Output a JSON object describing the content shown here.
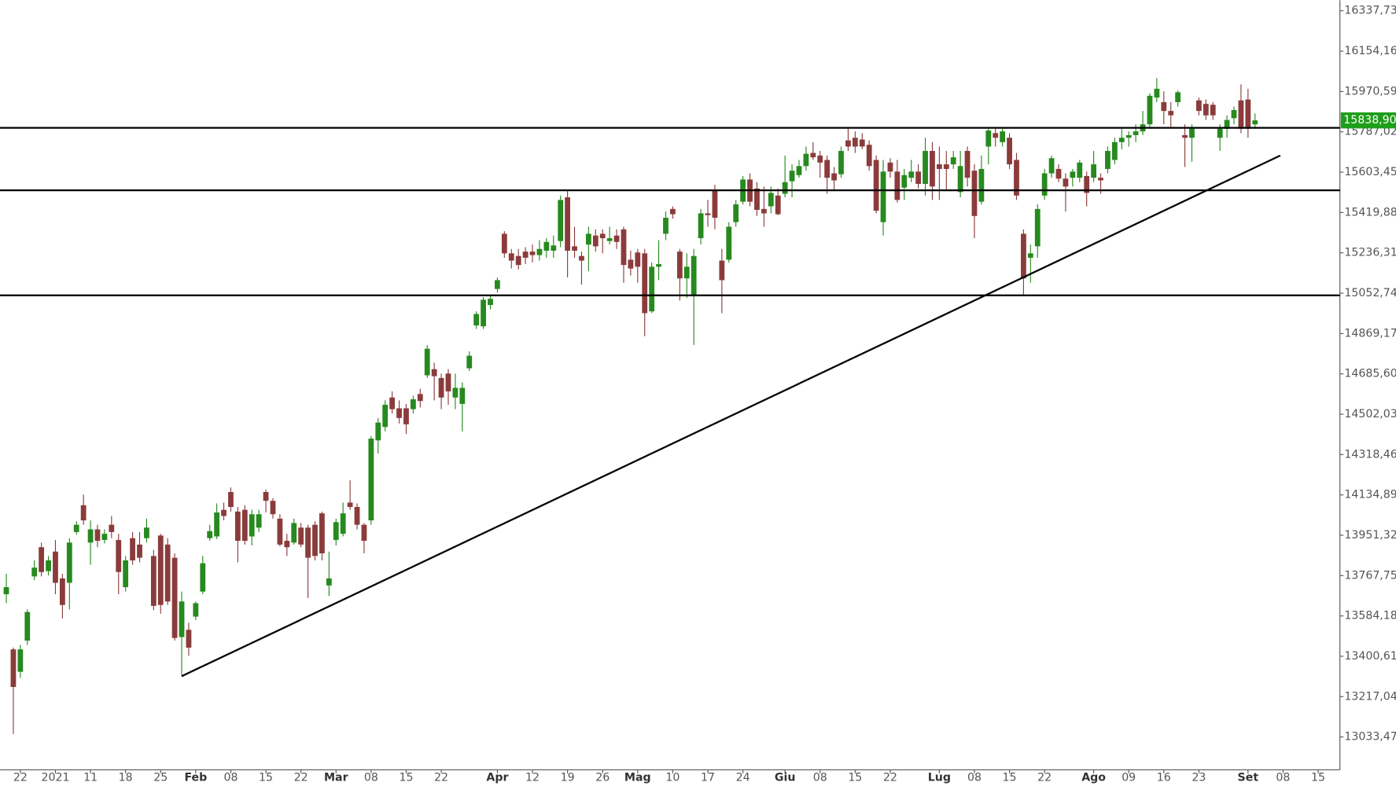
{
  "chart_data": {
    "type": "candlestick",
    "up_color": "#268a1e",
    "down_color": "#8b3b3b",
    "line_color": "#000000",
    "last_price_color": "#1e9e1a",
    "xlim": [
      -0.9,
      190.1
    ],
    "ylim": [
      12884,
      16386
    ],
    "xticks": [
      {
        "value": 2,
        "label": "22"
      },
      {
        "value": 7,
        "label": "2021"
      },
      {
        "value": 12,
        "label": "11"
      },
      {
        "value": 17,
        "label": "18"
      },
      {
        "value": 22,
        "label": "25"
      },
      {
        "value": 27,
        "label": "Feb"
      },
      {
        "value": 32,
        "label": "08"
      },
      {
        "value": 37,
        "label": "15"
      },
      {
        "value": 42,
        "label": "22"
      },
      {
        "value": 47,
        "label": "Mar"
      },
      {
        "value": 52,
        "label": "08"
      },
      {
        "value": 57,
        "label": "15"
      },
      {
        "value": 62,
        "label": "22"
      },
      {
        "value": 70,
        "label": "Apr"
      },
      {
        "value": 75,
        "label": "12"
      },
      {
        "value": 80,
        "label": "19"
      },
      {
        "value": 85,
        "label": "26"
      },
      {
        "value": 90,
        "label": "Mag"
      },
      {
        "value": 95,
        "label": "10"
      },
      {
        "value": 100,
        "label": "17"
      },
      {
        "value": 105,
        "label": "24"
      },
      {
        "value": 111,
        "label": "Giu"
      },
      {
        "value": 116,
        "label": "08"
      },
      {
        "value": 121,
        "label": "15"
      },
      {
        "value": 126,
        "label": "22"
      },
      {
        "value": 133,
        "label": "Lug"
      },
      {
        "value": 138,
        "label": "08"
      },
      {
        "value": 143,
        "label": "15"
      },
      {
        "value": 148,
        "label": "22"
      },
      {
        "value": 155,
        "label": "Ago"
      },
      {
        "value": 160,
        "label": "09"
      },
      {
        "value": 165,
        "label": "16"
      },
      {
        "value": 170,
        "label": "23"
      },
      {
        "value": 177,
        "label": "Set"
      },
      {
        "value": 182,
        "label": "08"
      },
      {
        "value": 187,
        "label": "15"
      }
    ],
    "yticks": [
      {
        "value": 16337.73,
        "label": "16337,73"
      },
      {
        "value": 16154.16,
        "label": "16154,16"
      },
      {
        "value": 15970.59,
        "label": "15970,59"
      },
      {
        "value": 15787.02,
        "label": "15787,02"
      },
      {
        "value": 15603.45,
        "label": "15603,45"
      },
      {
        "value": 15419.88,
        "label": "15419,88"
      },
      {
        "value": 15236.31,
        "label": "15236,31"
      },
      {
        "value": 15052.74,
        "label": "15052,74"
      },
      {
        "value": 14869.17,
        "label": "14869,17"
      },
      {
        "value": 14685.6,
        "label": "14685,60"
      },
      {
        "value": 14502.03,
        "label": "14502,03"
      },
      {
        "value": 14318.46,
        "label": "14318,46"
      },
      {
        "value": 14134.89,
        "label": "14134,89"
      },
      {
        "value": 13951.32,
        "label": "13951,32"
      },
      {
        "value": 13767.75,
        "label": "13767,75"
      },
      {
        "value": 13584.18,
        "label": "13584,18"
      },
      {
        "value": 13400.61,
        "label": "13400,61"
      },
      {
        "value": 13217.04,
        "label": "13217,04"
      },
      {
        "value": 13033.47,
        "label": "13033,47"
      }
    ],
    "last_price": {
      "value": 15838.9,
      "label": "15838,90"
    },
    "hlines": [
      15805,
      15521,
      15043
    ],
    "trendline": {
      "x": [
        25,
        181.6
      ],
      "y": [
        13310,
        15679
      ]
    },
    "candles": [
      [
        13683,
        13776,
        13642,
        13715
      ],
      [
        13432,
        13440,
        13047,
        13261
      ],
      [
        13330,
        13452,
        13302,
        13432
      ],
      [
        13472,
        13614,
        13452,
        13602
      ],
      [
        13764,
        13837,
        13747,
        13804
      ],
      [
        13897,
        13918,
        13764,
        13784
      ],
      [
        13788,
        13857,
        13768,
        13837
      ],
      [
        13877,
        13930,
        13683,
        13735
      ],
      [
        13755,
        13776,
        13573,
        13634
      ],
      [
        13735,
        13938,
        13614,
        13918
      ],
      [
        13966,
        14015,
        13954,
        13999
      ],
      [
        14088,
        14136,
        13999,
        14019
      ],
      [
        13918,
        14019,
        13817,
        13978
      ],
      [
        13978,
        13999,
        13897,
        13926
      ],
      [
        13930,
        13978,
        13914,
        13958
      ],
      [
        13999,
        14039,
        13938,
        13966
      ],
      [
        13930,
        13958,
        13683,
        13784
      ],
      [
        13715,
        13857,
        13695,
        13837
      ],
      [
        13938,
        13966,
        13817,
        13837
      ],
      [
        13909,
        13966,
        13828,
        13849
      ],
      [
        13938,
        14027,
        13918,
        13986
      ],
      [
        13857,
        13885,
        13610,
        13630
      ],
      [
        13950,
        13958,
        13594,
        13634
      ],
      [
        13909,
        13938,
        13634,
        13650
      ],
      [
        13849,
        13869,
        13472,
        13484
      ],
      [
        13488,
        13695,
        13310,
        13650
      ],
      [
        13521,
        13553,
        13403,
        13440
      ],
      [
        13581,
        13650,
        13565,
        13642
      ],
      [
        13695,
        13857,
        13683,
        13824
      ],
      [
        13938,
        13999,
        13926,
        13970
      ],
      [
        13946,
        14096,
        13934,
        14055
      ],
      [
        14067,
        14100,
        14019,
        14039
      ],
      [
        14148,
        14169,
        14059,
        14080
      ],
      [
        14059,
        14080,
        13828,
        13926
      ],
      [
        14067,
        14088,
        13909,
        13926
      ],
      [
        13946,
        14067,
        13905,
        14047
      ],
      [
        13986,
        14067,
        13966,
        14047
      ],
      [
        14148,
        14160,
        14055,
        14108
      ],
      [
        14108,
        14120,
        14027,
        14047
      ],
      [
        14027,
        14047,
        13901,
        13909
      ],
      [
        13926,
        13958,
        13857,
        13897
      ],
      [
        13918,
        14027,
        13909,
        14007
      ],
      [
        13986,
        14007,
        13897,
        13909
      ],
      [
        13986,
        13999,
        13666,
        13849
      ],
      [
        13999,
        14015,
        13837,
        13857
      ],
      [
        14051,
        14059,
        13837,
        13869
      ],
      [
        13723,
        13877,
        13675,
        13755
      ],
      [
        13930,
        14027,
        13905,
        14011
      ],
      [
        13958,
        14100,
        13946,
        14051
      ],
      [
        14100,
        14201,
        14067,
        14080
      ],
      [
        14080,
        14096,
        13978,
        13999
      ],
      [
        13999,
        14007,
        13869,
        13926
      ],
      [
        14019,
        14403,
        13999,
        14391
      ],
      [
        14383,
        14485,
        14323,
        14464
      ],
      [
        14444,
        14565,
        14424,
        14545
      ],
      [
        14578,
        14606,
        14505,
        14525
      ],
      [
        14529,
        14565,
        14460,
        14485
      ],
      [
        14529,
        14549,
        14412,
        14456
      ],
      [
        14525,
        14586,
        14505,
        14570
      ],
      [
        14594,
        14618,
        14533,
        14562
      ],
      [
        14679,
        14817,
        14667,
        14800
      ],
      [
        14707,
        14736,
        14565,
        14675
      ],
      [
        14667,
        14687,
        14525,
        14578
      ],
      [
        14687,
        14707,
        14545,
        14606
      ],
      [
        14578,
        14687,
        14525,
        14622
      ],
      [
        14549,
        14647,
        14424,
        14622
      ],
      [
        14711,
        14788,
        14699,
        14768
      ],
      [
        14906,
        14970,
        14890,
        14958
      ],
      [
        14902,
        15035,
        14890,
        15023
      ],
      [
        14999,
        15043,
        14979,
        15027
      ],
      [
        15072,
        15124,
        15056,
        15112
      ],
      [
        15323,
        15335,
        15214,
        15234
      ],
      [
        15234,
        15254,
        15165,
        15201
      ],
      [
        15222,
        15254,
        15161,
        15181
      ],
      [
        15242,
        15262,
        15185,
        15214
      ],
      [
        15242,
        15274,
        15193,
        15226
      ],
      [
        15226,
        15294,
        15201,
        15254
      ],
      [
        15246,
        15303,
        15214,
        15286
      ],
      [
        15246,
        15315,
        15214,
        15270
      ],
      [
        15290,
        15497,
        15262,
        15477
      ],
      [
        15489,
        15517,
        15124,
        15246
      ],
      [
        15266,
        15355,
        15214,
        15246
      ],
      [
        15222,
        15242,
        15092,
        15201
      ],
      [
        15274,
        15355,
        15153,
        15323
      ],
      [
        15315,
        15343,
        15242,
        15266
      ],
      [
        15323,
        15343,
        15234,
        15303
      ],
      [
        15290,
        15355,
        15274,
        15303
      ],
      [
        15315,
        15343,
        15254,
        15286
      ],
      [
        15343,
        15355,
        15100,
        15181
      ],
      [
        15205,
        15246,
        15133,
        15165
      ],
      [
        15238,
        15254,
        15100,
        15173
      ],
      [
        15234,
        15254,
        14857,
        14962
      ],
      [
        14970,
        15193,
        14962,
        15173
      ],
      [
        15173,
        15294,
        15112,
        15185
      ],
      [
        15323,
        15424,
        15294,
        15396
      ],
      [
        15436,
        15448,
        15392,
        15412
      ],
      [
        15242,
        15254,
        15019,
        15120
      ],
      [
        15120,
        15234,
        15031,
        15173
      ],
      [
        15039,
        15254,
        14817,
        15222
      ],
      [
        15303,
        15436,
        15274,
        15416
      ],
      [
        15416,
        15477,
        15355,
        15408
      ],
      [
        15525,
        15546,
        15343,
        15396
      ],
      [
        15201,
        15254,
        14962,
        15112
      ],
      [
        15205,
        15376,
        15193,
        15355
      ],
      [
        15376,
        15477,
        15355,
        15457
      ],
      [
        15469,
        15586,
        15457,
        15570
      ],
      [
        15570,
        15598,
        15448,
        15469
      ],
      [
        15529,
        15558,
        15404,
        15432
      ],
      [
        15436,
        15538,
        15355,
        15416
      ],
      [
        15448,
        15538,
        15416,
        15509
      ],
      [
        15497,
        15529,
        15408,
        15412
      ],
      [
        15505,
        15679,
        15489,
        15558
      ],
      [
        15562,
        15639,
        15489,
        15610
      ],
      [
        15590,
        15659,
        15578,
        15631
      ],
      [
        15631,
        15720,
        15610,
        15687
      ],
      [
        15691,
        15740,
        15659,
        15671
      ],
      [
        15679,
        15700,
        15578,
        15647
      ],
      [
        15659,
        15679,
        15505,
        15578
      ],
      [
        15598,
        15627,
        15517,
        15566
      ],
      [
        15594,
        15720,
        15578,
        15700
      ],
      [
        15748,
        15801,
        15700,
        15720
      ],
      [
        15760,
        15789,
        15691,
        15720
      ],
      [
        15752,
        15781,
        15708,
        15720
      ],
      [
        15728,
        15748,
        15610,
        15631
      ],
      [
        15659,
        15679,
        15416,
        15428
      ],
      [
        15376,
        15659,
        15315,
        15606
      ],
      [
        15647,
        15667,
        15578,
        15606
      ],
      [
        15606,
        15659,
        15465,
        15477
      ],
      [
        15533,
        15618,
        15477,
        15590
      ],
      [
        15578,
        15659,
        15558,
        15606
      ],
      [
        15606,
        15639,
        15529,
        15550
      ],
      [
        15550,
        15760,
        15497,
        15700
      ],
      [
        15700,
        15740,
        15477,
        15538
      ],
      [
        15639,
        15720,
        15477,
        15618
      ],
      [
        15639,
        15700,
        15517,
        15618
      ],
      [
        15639,
        15700,
        15618,
        15671
      ],
      [
        15513,
        15700,
        15489,
        15631
      ],
      [
        15700,
        15720,
        15538,
        15578
      ],
      [
        15610,
        15639,
        15303,
        15404
      ],
      [
        15469,
        15679,
        15457,
        15618
      ],
      [
        15720,
        15801,
        15639,
        15793
      ],
      [
        15781,
        15801,
        15720,
        15760
      ],
      [
        15740,
        15801,
        15720,
        15789
      ],
      [
        15760,
        15781,
        15618,
        15639
      ],
      [
        15659,
        15691,
        15477,
        15497
      ],
      [
        15323,
        15343,
        15043,
        15120
      ],
      [
        15214,
        15274,
        15100,
        15234
      ],
      [
        15266,
        15457,
        15214,
        15436
      ],
      [
        15497,
        15618,
        15477,
        15598
      ],
      [
        15598,
        15679,
        15578,
        15667
      ],
      [
        15618,
        15639,
        15558,
        15574
      ],
      [
        15574,
        15598,
        15424,
        15538
      ],
      [
        15578,
        15618,
        15538,
        15606
      ],
      [
        15578,
        15659,
        15558,
        15647
      ],
      [
        15586,
        15606,
        15448,
        15509
      ],
      [
        15578,
        15700,
        15558,
        15639
      ],
      [
        15578,
        15598,
        15505,
        15566
      ],
      [
        15618,
        15720,
        15598,
        15700
      ],
      [
        15659,
        15760,
        15639,
        15740
      ],
      [
        15740,
        15801,
        15708,
        15760
      ],
      [
        15760,
        15789,
        15720,
        15772
      ],
      [
        15772,
        15821,
        15740,
        15789
      ],
      [
        15789,
        15882,
        15772,
        15821
      ],
      [
        15821,
        15963,
        15801,
        15951
      ],
      [
        15943,
        16032,
        15922,
        15983
      ],
      [
        15922,
        15971,
        15821,
        15882
      ],
      [
        15882,
        15922,
        15801,
        15862
      ],
      [
        15922,
        15975,
        15902,
        15967
      ],
      [
        15772,
        15821,
        15627,
        15760
      ],
      [
        15760,
        15821,
        15651,
        15801
      ],
      [
        15930,
        15943,
        15862,
        15882
      ],
      [
        15914,
        15934,
        15841,
        15862
      ],
      [
        15910,
        15922,
        15841,
        15862
      ],
      [
        15760,
        15821,
        15700,
        15801
      ],
      [
        15801,
        15862,
        15760,
        15841
      ],
      [
        15849,
        15902,
        15821,
        15886
      ],
      [
        15930,
        16003,
        15781,
        15801
      ],
      [
        15934,
        15983,
        15760,
        15801
      ],
      [
        15821,
        15870,
        15801,
        15838.9
      ]
    ]
  }
}
